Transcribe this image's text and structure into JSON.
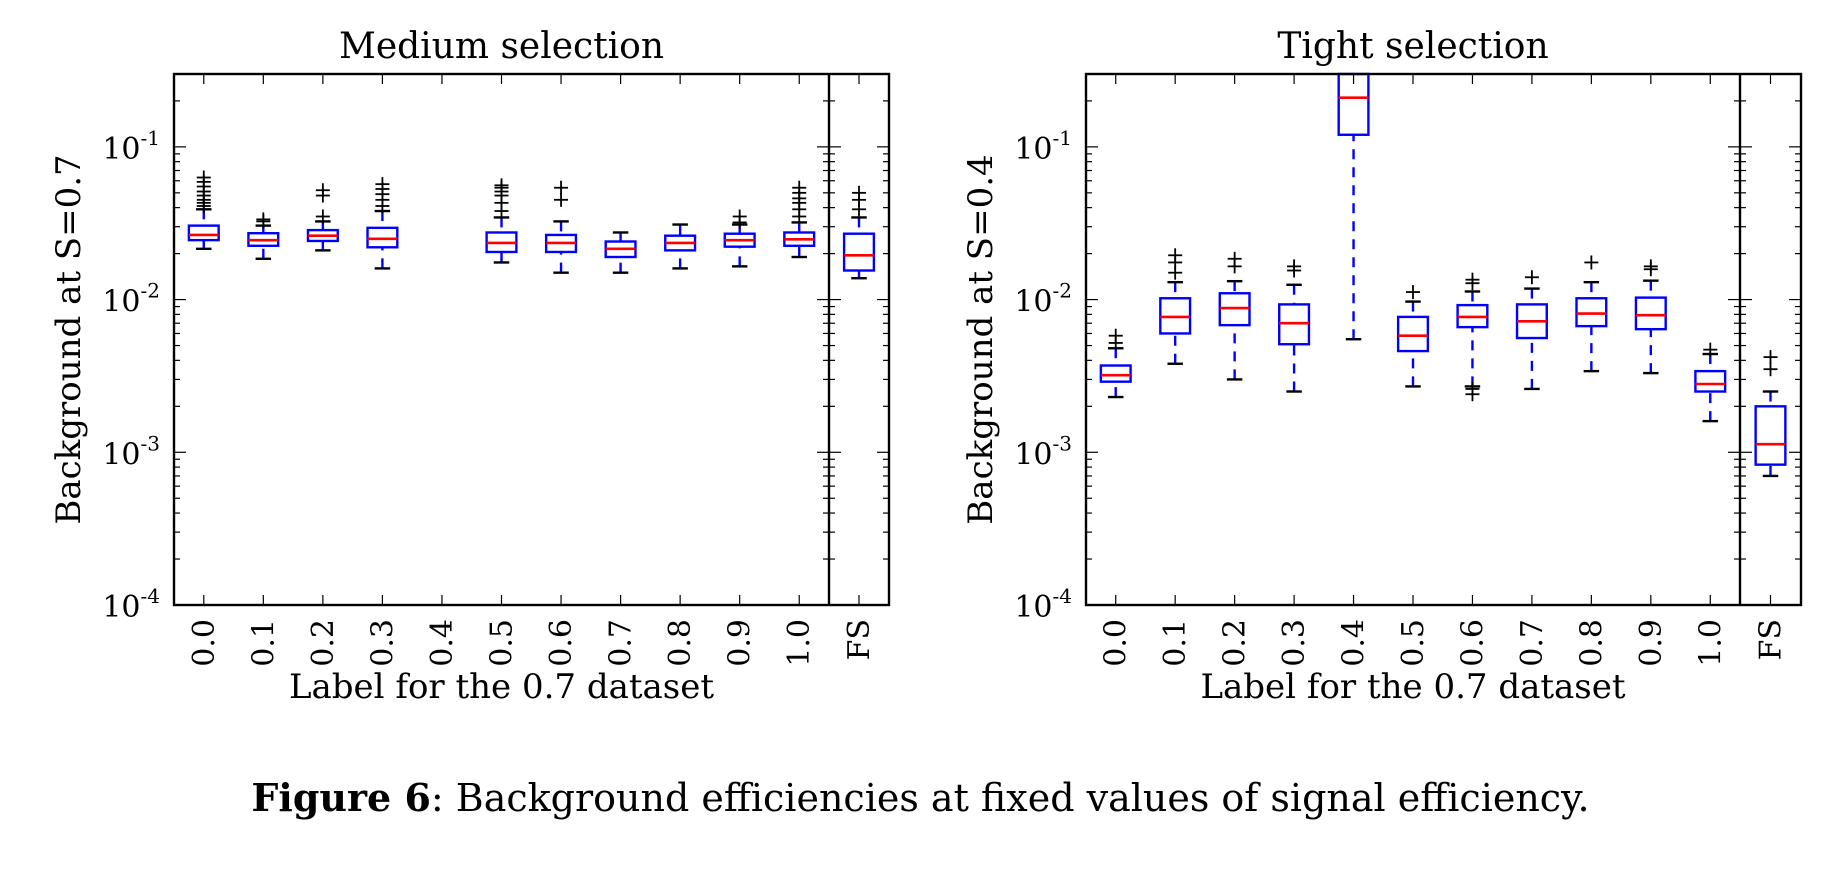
{
  "chart_data": [
    {
      "type": "box",
      "title": "Medium selection",
      "xlabel": "Label for the 0.7 dataset",
      "ylabel": "Background at S=0.7",
      "yscale": "log",
      "ylim": [
        0.0001,
        0.3
      ],
      "yticks": [
        "10^-4",
        "10^-3",
        "10^-2",
        "10^-1"
      ],
      "categories": [
        "0.0",
        "0.1",
        "0.2",
        "0.3",
        "0.4",
        "0.5",
        "0.6",
        "0.7",
        "0.8",
        "0.9",
        "1.0"
      ],
      "boxes": [
        {
          "label": "0.0",
          "whislo": 0.0215,
          "q1": 0.0245,
          "med": 0.0265,
          "q3": 0.0305,
          "whishi": 0.039,
          "fliers": [
            0.041,
            0.043,
            0.045,
            0.048,
            0.051,
            0.055,
            0.059,
            0.063
          ]
        },
        {
          "label": "0.1",
          "whislo": 0.0185,
          "q1": 0.0225,
          "med": 0.0245,
          "q3": 0.0272,
          "whishi": 0.0305,
          "fliers": [
            0.0325,
            0.0335
          ]
        },
        {
          "label": "0.2",
          "whislo": 0.021,
          "q1": 0.0242,
          "med": 0.0262,
          "q3": 0.0285,
          "whishi": 0.0325,
          "fliers": [
            0.035,
            0.048,
            0.052
          ]
        },
        {
          "label": "0.3",
          "whislo": 0.016,
          "q1": 0.022,
          "med": 0.025,
          "q3": 0.0295,
          "whishi": 0.038,
          "fliers": [
            0.041,
            0.045,
            0.049,
            0.053,
            0.057
          ]
        },
        {
          "label": "0.4",
          "empty": true
        },
        {
          "label": "0.5",
          "whislo": 0.0175,
          "q1": 0.0205,
          "med": 0.0235,
          "q3": 0.0275,
          "whishi": 0.0345,
          "fliers": [
            0.038,
            0.043,
            0.048,
            0.051,
            0.054,
            0.056
          ]
        },
        {
          "label": "0.6",
          "whislo": 0.015,
          "q1": 0.0205,
          "med": 0.0235,
          "q3": 0.0265,
          "whishi": 0.0325,
          "fliers": [
            0.045,
            0.054
          ]
        },
        {
          "label": "0.7",
          "whislo": 0.015,
          "q1": 0.019,
          "med": 0.0215,
          "q3": 0.024,
          "whishi": 0.0275,
          "fliers": []
        },
        {
          "label": "0.8",
          "whislo": 0.016,
          "q1": 0.021,
          "med": 0.0235,
          "q3": 0.0262,
          "whishi": 0.031,
          "fliers": []
        },
        {
          "label": "0.9",
          "whislo": 0.0165,
          "q1": 0.0222,
          "med": 0.0245,
          "q3": 0.027,
          "whishi": 0.031,
          "fliers": [
            0.032,
            0.035
          ]
        },
        {
          "label": "1.0",
          "whislo": 0.019,
          "q1": 0.0225,
          "med": 0.0248,
          "q3": 0.0275,
          "whishi": 0.032,
          "fliers": [
            0.035,
            0.039,
            0.043,
            0.046,
            0.05,
            0.054
          ]
        }
      ],
      "side_box": {
        "label": "FS",
        "whislo": 0.0138,
        "q1": 0.0155,
        "med": 0.0195,
        "q3": 0.027,
        "whishi": 0.0345,
        "fliers": [
          0.039,
          0.045,
          0.05
        ]
      }
    },
    {
      "type": "box",
      "title": "Tight selection",
      "xlabel": "Label for the 0.7 dataset",
      "ylabel": "Background at S=0.4",
      "yscale": "log",
      "ylim": [
        0.0001,
        0.3
      ],
      "yticks": [
        "10^-4",
        "10^-3",
        "10^-2",
        "10^-1"
      ],
      "categories": [
        "0.0",
        "0.1",
        "0.2",
        "0.3",
        "0.4",
        "0.5",
        "0.6",
        "0.7",
        "0.8",
        "0.9",
        "1.0"
      ],
      "boxes": [
        {
          "label": "0.0",
          "whislo": 0.0023,
          "q1": 0.0029,
          "med": 0.0032,
          "q3": 0.0037,
          "whishi": 0.0048,
          "fliers": [
            0.0052,
            0.0058
          ]
        },
        {
          "label": "0.1",
          "whislo": 0.0038,
          "q1": 0.006,
          "med": 0.0077,
          "q3": 0.0102,
          "whishi": 0.013,
          "fliers": [
            0.015,
            0.0175,
            0.0195
          ]
        },
        {
          "label": "0.2",
          "whislo": 0.003,
          "q1": 0.0068,
          "med": 0.0088,
          "q3": 0.011,
          "whishi": 0.0132,
          "fliers": [
            0.0165,
            0.0185
          ]
        },
        {
          "label": "0.3",
          "whislo": 0.0025,
          "q1": 0.0051,
          "med": 0.007,
          "q3": 0.0093,
          "whishi": 0.0125,
          "fliers": [
            0.0155,
            0.0165
          ]
        },
        {
          "label": "0.4",
          "whislo": 0.0055,
          "q1": 0.12,
          "med": 0.21,
          "q3": 0.3,
          "whishi": 0.3,
          "fliers": []
        },
        {
          "label": "0.5",
          "whislo": 0.0027,
          "q1": 0.0046,
          "med": 0.0058,
          "q3": 0.0077,
          "whishi": 0.0097,
          "fliers": [
            0.0112
          ]
        },
        {
          "label": "0.6",
          "whislo": 0.0027,
          "q1": 0.0066,
          "med": 0.0077,
          "q3": 0.0092,
          "whishi": 0.0113,
          "fliers": [
            0.0024,
            0.0026,
            0.0128,
            0.0135
          ]
        },
        {
          "label": "0.7",
          "whislo": 0.0026,
          "q1": 0.0056,
          "med": 0.0072,
          "q3": 0.0093,
          "whishi": 0.0118,
          "fliers": [
            0.014
          ]
        },
        {
          "label": "0.8",
          "whislo": 0.0034,
          "q1": 0.0067,
          "med": 0.0081,
          "q3": 0.0102,
          "whishi": 0.013,
          "fliers": [
            0.0175
          ]
        },
        {
          "label": "0.9",
          "whislo": 0.0033,
          "q1": 0.0064,
          "med": 0.0079,
          "q3": 0.0103,
          "whishi": 0.0133,
          "fliers": [
            0.0158,
            0.0165
          ]
        },
        {
          "label": "1.0",
          "whislo": 0.0016,
          "q1": 0.0025,
          "med": 0.0028,
          "q3": 0.0034,
          "whishi": 0.0044,
          "fliers": [
            0.0047
          ]
        }
      ],
      "side_box": {
        "label": "FS",
        "whislo": 0.0007,
        "q1": 0.00083,
        "med": 0.00113,
        "q3": 0.002,
        "whishi": 0.0025,
        "fliers": [
          0.0035,
          0.0042
        ]
      }
    }
  ],
  "caption": {
    "label": "Figure 6",
    "text": ": Background efficiencies at fixed values of signal efficiency."
  },
  "colors": {
    "box": "#0000ff",
    "median": "#ff0000",
    "flier": "#000000",
    "axes": "#000000"
  }
}
